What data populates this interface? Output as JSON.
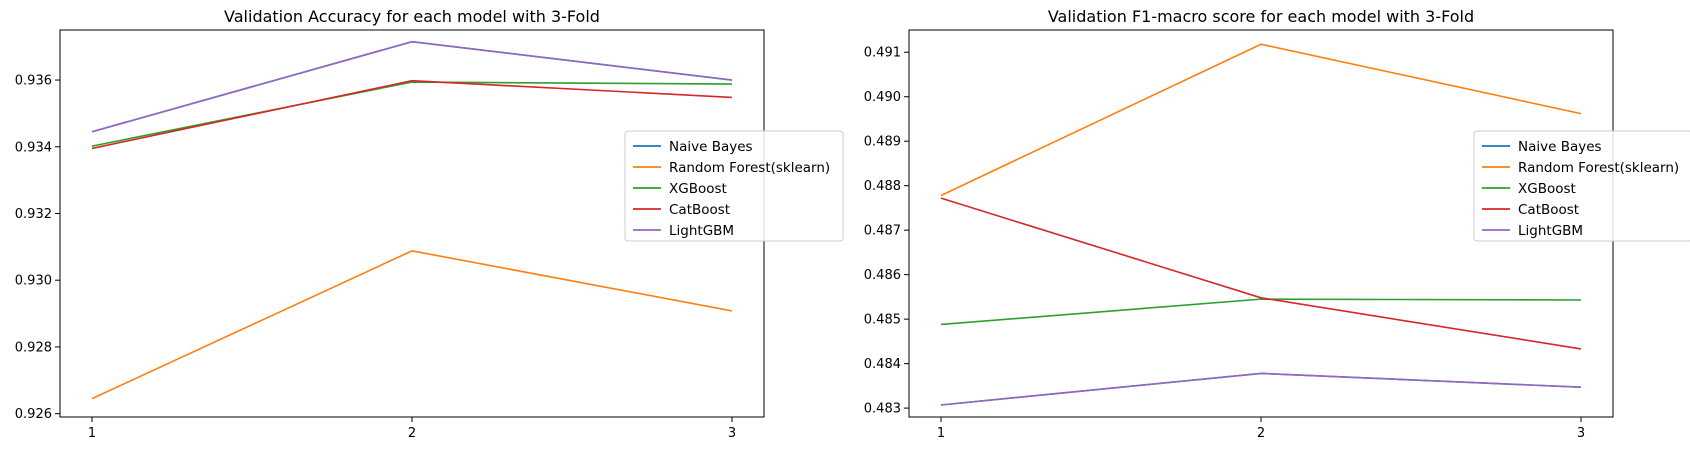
{
  "chart_data": [
    {
      "type": "line",
      "title": "Validation Accuracy for each model with 3-Fold",
      "xlabel": "",
      "ylabel": "",
      "x": [
        1,
        2,
        3
      ],
      "xticks": [
        "1",
        "2",
        "3"
      ],
      "xlim": [
        0.9,
        3.1
      ],
      "ylim": [
        0.9259,
        0.9375
      ],
      "yticks": [
        "0.926",
        "0.928",
        "0.930",
        "0.932",
        "0.934",
        "0.936"
      ],
      "ytick_values": [
        0.926,
        0.928,
        0.93,
        0.932,
        0.934,
        0.936
      ],
      "grid": false,
      "legend_position": "center-right",
      "series": [
        {
          "name": "Naive Bayes",
          "color": "#1f77b4",
          "values": [
            0.93445,
            0.93715,
            0.936
          ]
        },
        {
          "name": "Random Forest(sklearn)",
          "color": "#ff7f0e",
          "values": [
            0.92645,
            0.93088,
            0.92908
          ]
        },
        {
          "name": "XGBoost",
          "color": "#2ca02c",
          "values": [
            0.93402,
            0.93594,
            0.93588
          ]
        },
        {
          "name": "CatBoost",
          "color": "#d62728",
          "values": [
            0.93395,
            0.93598,
            0.93548
          ]
        },
        {
          "name": "LightGBM",
          "color": "#9467bd",
          "values": [
            0.93445,
            0.93715,
            0.936
          ]
        }
      ]
    },
    {
      "type": "line",
      "title": "Validation F1-macro score for each model with 3-Fold",
      "xlabel": "",
      "ylabel": "",
      "x": [
        1,
        2,
        3
      ],
      "xticks": [
        "1",
        "2",
        "3"
      ],
      "xlim": [
        0.9,
        3.1
      ],
      "ylim": [
        0.4828,
        0.4915
      ],
      "yticks": [
        "0.483",
        "0.484",
        "0.485",
        "0.486",
        "0.487",
        "0.488",
        "0.489",
        "0.490",
        "0.491"
      ],
      "ytick_values": [
        0.483,
        0.484,
        0.485,
        0.486,
        0.487,
        0.488,
        0.489,
        0.49,
        0.491
      ],
      "grid": false,
      "legend_position": "center-right",
      "series": [
        {
          "name": "Naive Bayes",
          "color": "#1f77b4",
          "values": [
            0.48307,
            0.48378,
            0.48347
          ]
        },
        {
          "name": "Random Forest(sklearn)",
          "color": "#ff7f0e",
          "values": [
            0.48778,
            0.49118,
            0.48962
          ]
        },
        {
          "name": "XGBoost",
          "color": "#2ca02c",
          "values": [
            0.48488,
            0.48545,
            0.48543
          ]
        },
        {
          "name": "CatBoost",
          "color": "#d62728",
          "values": [
            0.48772,
            0.48548,
            0.48433
          ]
        },
        {
          "name": "LightGBM",
          "color": "#9467bd",
          "values": [
            0.48307,
            0.48378,
            0.48347
          ]
        }
      ]
    }
  ]
}
